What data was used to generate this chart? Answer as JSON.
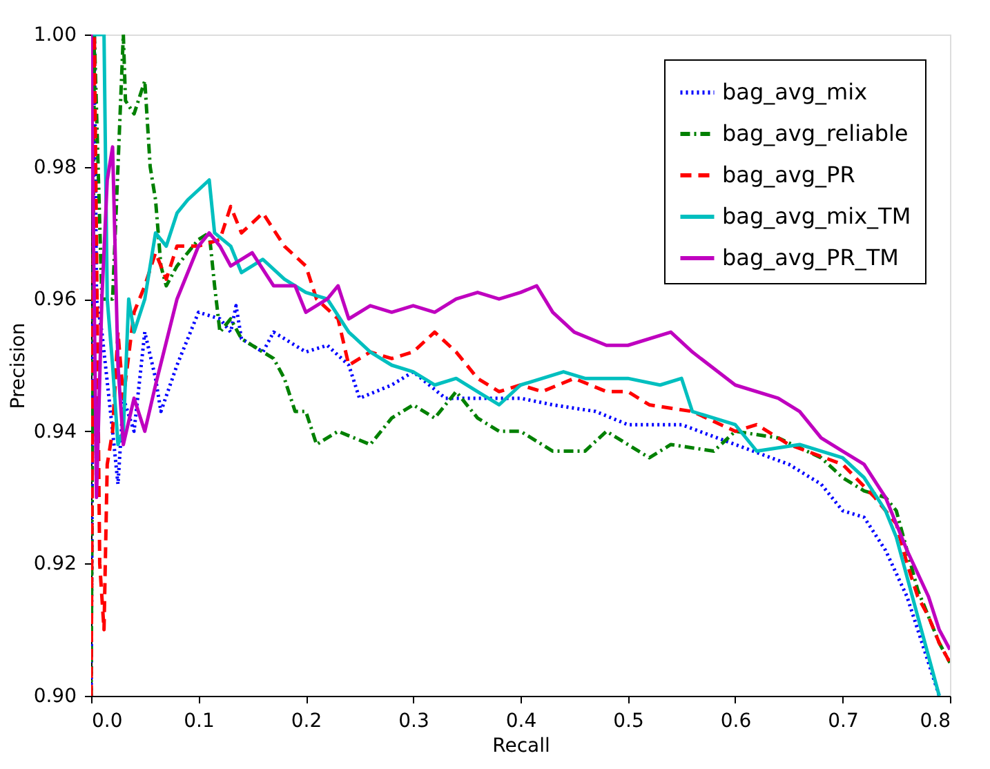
{
  "chart_data": {
    "type": "line",
    "xlabel": "Recall",
    "ylabel": "Precision",
    "xlim": [
      0.0,
      0.8
    ],
    "ylim": [
      0.9,
      1.0
    ],
    "xticks": [
      {
        "value": 0.0,
        "label": "0.0"
      },
      0.1,
      0.2,
      0.3,
      0.4,
      0.5,
      0.6,
      0.7,
      0.8
    ],
    "yticks": [
      {
        "value": 0.9,
        "label": "0.90"
      },
      0.92,
      0.94,
      0.96,
      0.98,
      {
        "value": 1.0,
        "label": "1.00"
      }
    ],
    "grid": false,
    "legend": "top right",
    "marker": "none",
    "series": [
      {
        "name": "bag_avg_mix",
        "color": "#0000ff",
        "line_style": "dotted",
        "x": [
          0.0,
          0.003,
          0.005,
          0.01,
          0.02,
          0.025,
          0.03,
          0.04,
          0.05,
          0.06,
          0.065,
          0.08,
          0.1,
          0.12,
          0.13,
          0.135,
          0.14,
          0.16,
          0.17,
          0.2,
          0.22,
          0.24,
          0.25,
          0.28,
          0.3,
          0.33,
          0.36,
          0.4,
          0.43,
          0.47,
          0.5,
          0.55,
          0.6,
          0.65,
          0.68,
          0.7,
          0.72,
          0.74,
          0.76,
          0.77,
          0.78,
          0.79
        ],
        "values": [
          0.9,
          1.0,
          0.96,
          0.955,
          0.94,
          0.932,
          0.945,
          0.94,
          0.955,
          0.948,
          0.943,
          0.95,
          0.958,
          0.957,
          0.955,
          0.959,
          0.954,
          0.952,
          0.955,
          0.952,
          0.953,
          0.95,
          0.945,
          0.947,
          0.949,
          0.945,
          0.945,
          0.945,
          0.944,
          0.943,
          0.941,
          0.941,
          0.938,
          0.935,
          0.932,
          0.928,
          0.927,
          0.922,
          0.915,
          0.91,
          0.905,
          0.9
        ]
      },
      {
        "name": "bag_avg_reliable",
        "color": "#008000",
        "line_style": "dashdot",
        "x": [
          0.0,
          0.003,
          0.01,
          0.02,
          0.03,
          0.032,
          0.04,
          0.05,
          0.055,
          0.06,
          0.065,
          0.07,
          0.08,
          0.1,
          0.11,
          0.115,
          0.12,
          0.13,
          0.14,
          0.17,
          0.18,
          0.19,
          0.2,
          0.21,
          0.23,
          0.26,
          0.28,
          0.3,
          0.32,
          0.34,
          0.36,
          0.38,
          0.4,
          0.43,
          0.46,
          0.48,
          0.5,
          0.52,
          0.54,
          0.58,
          0.6,
          0.64,
          0.68,
          0.7,
          0.72,
          0.74,
          0.75,
          0.76,
          0.77,
          0.78,
          0.79,
          0.8
        ],
        "values": [
          0.9,
          1.0,
          0.96,
          0.96,
          1.0,
          0.99,
          0.988,
          0.993,
          0.98,
          0.975,
          0.965,
          0.962,
          0.965,
          0.969,
          0.97,
          0.962,
          0.955,
          0.957,
          0.954,
          0.951,
          0.948,
          0.943,
          0.943,
          0.938,
          0.94,
          0.938,
          0.942,
          0.944,
          0.942,
          0.946,
          0.942,
          0.94,
          0.94,
          0.937,
          0.937,
          0.94,
          0.938,
          0.936,
          0.938,
          0.937,
          0.94,
          0.939,
          0.936,
          0.933,
          0.931,
          0.93,
          0.928,
          0.922,
          0.916,
          0.912,
          0.908,
          0.905
        ]
      },
      {
        "name": "bag_avg_PR",
        "color": "#ff0000",
        "line_style": "dashed",
        "x": [
          0.0,
          0.003,
          0.008,
          0.012,
          0.015,
          0.02,
          0.025,
          0.03,
          0.04,
          0.05,
          0.06,
          0.07,
          0.08,
          0.1,
          0.12,
          0.13,
          0.14,
          0.16,
          0.18,
          0.2,
          0.21,
          0.23,
          0.24,
          0.26,
          0.28,
          0.3,
          0.32,
          0.34,
          0.36,
          0.38,
          0.4,
          0.42,
          0.45,
          0.48,
          0.5,
          0.52,
          0.56,
          0.6,
          0.62,
          0.65,
          0.7,
          0.73,
          0.75,
          0.76,
          0.77,
          0.78,
          0.79,
          0.8
        ],
        "values": [
          0.9,
          1.0,
          0.92,
          0.91,
          0.935,
          0.94,
          0.955,
          0.945,
          0.958,
          0.962,
          0.967,
          0.963,
          0.968,
          0.968,
          0.969,
          0.974,
          0.97,
          0.973,
          0.968,
          0.965,
          0.96,
          0.957,
          0.95,
          0.952,
          0.951,
          0.952,
          0.955,
          0.952,
          0.948,
          0.946,
          0.947,
          0.946,
          0.948,
          0.946,
          0.946,
          0.944,
          0.943,
          0.94,
          0.941,
          0.938,
          0.935,
          0.93,
          0.926,
          0.92,
          0.915,
          0.912,
          0.908,
          0.905
        ]
      },
      {
        "name": "bag_avg_mix_TM",
        "color": "#00bfbf",
        "line_style": "solid",
        "x": [
          0.0,
          0.012,
          0.015,
          0.02,
          0.025,
          0.03,
          0.035,
          0.04,
          0.05,
          0.06,
          0.07,
          0.08,
          0.09,
          0.11,
          0.115,
          0.13,
          0.14,
          0.16,
          0.18,
          0.2,
          0.22,
          0.24,
          0.26,
          0.28,
          0.3,
          0.32,
          0.34,
          0.36,
          0.38,
          0.4,
          0.44,
          0.46,
          0.5,
          0.53,
          0.55,
          0.56,
          0.6,
          0.62,
          0.66,
          0.7,
          0.72,
          0.74,
          0.75,
          0.76,
          0.77,
          0.78,
          0.79
        ],
        "values": [
          1.0,
          1.0,
          0.96,
          0.95,
          0.938,
          0.94,
          0.96,
          0.955,
          0.96,
          0.97,
          0.968,
          0.973,
          0.975,
          0.978,
          0.97,
          0.968,
          0.964,
          0.966,
          0.963,
          0.961,
          0.96,
          0.955,
          0.952,
          0.95,
          0.949,
          0.947,
          0.948,
          0.946,
          0.944,
          0.947,
          0.949,
          0.948,
          0.948,
          0.947,
          0.948,
          0.943,
          0.941,
          0.937,
          0.938,
          0.936,
          0.933,
          0.928,
          0.924,
          0.918,
          0.912,
          0.906,
          0.9
        ]
      },
      {
        "name": "bag_avg_PR_TM",
        "color": "#bf00bf",
        "line_style": "solid",
        "x": [
          0.0,
          0.005,
          0.01,
          0.015,
          0.02,
          0.025,
          0.03,
          0.04,
          0.05,
          0.06,
          0.08,
          0.1,
          0.11,
          0.12,
          0.13,
          0.15,
          0.17,
          0.19,
          0.2,
          0.22,
          0.23,
          0.24,
          0.26,
          0.28,
          0.3,
          0.32,
          0.34,
          0.36,
          0.38,
          0.4,
          0.415,
          0.43,
          0.45,
          0.48,
          0.5,
          0.54,
          0.56,
          0.6,
          0.64,
          0.66,
          0.68,
          0.7,
          0.72,
          0.74,
          0.76,
          0.78,
          0.79,
          0.8
        ],
        "values": [
          1.0,
          0.93,
          0.96,
          0.978,
          0.983,
          0.95,
          0.938,
          0.945,
          0.94,
          0.947,
          0.96,
          0.968,
          0.97,
          0.968,
          0.965,
          0.967,
          0.962,
          0.962,
          0.958,
          0.96,
          0.962,
          0.957,
          0.959,
          0.958,
          0.959,
          0.958,
          0.96,
          0.961,
          0.96,
          0.961,
          0.962,
          0.958,
          0.955,
          0.953,
          0.953,
          0.955,
          0.952,
          0.947,
          0.945,
          0.943,
          0.939,
          0.937,
          0.935,
          0.93,
          0.922,
          0.915,
          0.91,
          0.907
        ]
      }
    ]
  }
}
